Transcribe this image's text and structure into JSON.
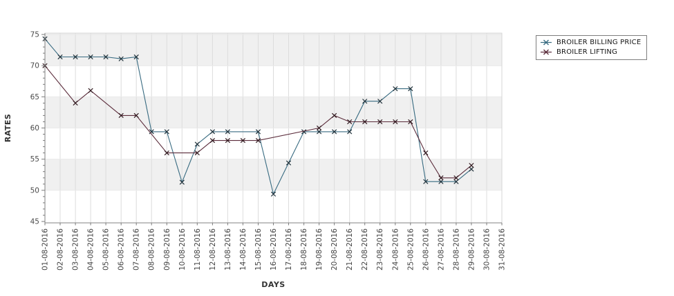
{
  "chart_data": {
    "type": "line",
    "title": "",
    "xlabel": "DAYS",
    "ylabel": "RATES",
    "ylim": [
      45,
      75
    ],
    "y_major_ticks": [
      45,
      50,
      55,
      60,
      65,
      70,
      75
    ],
    "y_minor_tick_step": 1,
    "x_tick_labels": [
      "01-08-2016",
      "02-08-2016",
      "03-08-2016",
      "04-08-2016",
      "05-08-2016",
      "06-08-2016",
      "07-08-2016",
      "08-08-2016",
      "09-08-2016",
      "10-08-2016",
      "11-08-2016",
      "12-08-2016",
      "13-08-2016",
      "14-08-2016",
      "15-08-2016",
      "16-08-2016",
      "17-08-2016",
      "18-08-2016",
      "19-08-2016",
      "20-08-2016",
      "21-08-2016",
      "22-08-2016",
      "23-08-2016",
      "24-08-2016",
      "25-08-2016",
      "26-08-2016",
      "27-08-2016",
      "28-08-2016",
      "29-08-2016",
      "30-08-2016",
      "31-08-2016"
    ],
    "grid": true,
    "legend_position": "top-right",
    "colors": {
      "band": "#f0f0f0",
      "grid_vertical": "#dcdcdc",
      "grid_horizontal": "#e9e9e9",
      "plot_outline": "#d6d6d6",
      "axis": "#808080",
      "tick": "#7a7a7a"
    },
    "band_value_ranges": [
      [
        70,
        75.25
      ],
      [
        60,
        65
      ],
      [
        50,
        55
      ]
    ],
    "series": [
      {
        "name": "BROILER BILLING PRICE",
        "color": "#376a80",
        "marker": "x",
        "marker_color": "#22333c",
        "points": [
          [
            1,
            74.3
          ],
          [
            2,
            71.4
          ],
          [
            3,
            71.4
          ],
          [
            4,
            71.4
          ],
          [
            5,
            71.4
          ],
          [
            6,
            71.1
          ],
          [
            7,
            71.4
          ],
          [
            8,
            59.4
          ],
          [
            9,
            59.4
          ],
          [
            10,
            51.3
          ],
          [
            11,
            57.4
          ],
          [
            12,
            59.4
          ],
          [
            13,
            59.4
          ],
          [
            15,
            59.4
          ],
          [
            16,
            49.4
          ],
          [
            17,
            54.4
          ],
          [
            18,
            59.4
          ],
          [
            19,
            59.4
          ],
          [
            20,
            59.4
          ],
          [
            21,
            59.4
          ],
          [
            22,
            64.3
          ],
          [
            23,
            64.3
          ],
          [
            24,
            66.3
          ],
          [
            25,
            66.3
          ],
          [
            26,
            51.4
          ],
          [
            27,
            51.4
          ],
          [
            28,
            51.4
          ],
          [
            29,
            53.4
          ]
        ]
      },
      {
        "name": "BROILER LIFTING",
        "color": "#5a2b3a",
        "marker": "x",
        "marker_color": "#31191f",
        "points": [
          [
            1,
            70
          ],
          [
            3,
            64
          ],
          [
            4,
            66
          ],
          [
            6,
            62
          ],
          [
            7,
            62
          ],
          [
            9,
            56
          ],
          [
            11,
            56
          ],
          [
            12,
            58
          ],
          [
            13,
            58
          ],
          [
            14,
            58
          ],
          [
            15,
            58
          ],
          [
            19,
            60
          ],
          [
            20,
            62
          ],
          [
            21,
            61
          ],
          [
            22,
            61
          ],
          [
            23,
            61
          ],
          [
            24,
            61
          ],
          [
            25,
            61
          ],
          [
            26,
            56
          ],
          [
            27,
            52
          ],
          [
            28,
            52
          ],
          [
            29,
            54
          ]
        ]
      }
    ]
  }
}
